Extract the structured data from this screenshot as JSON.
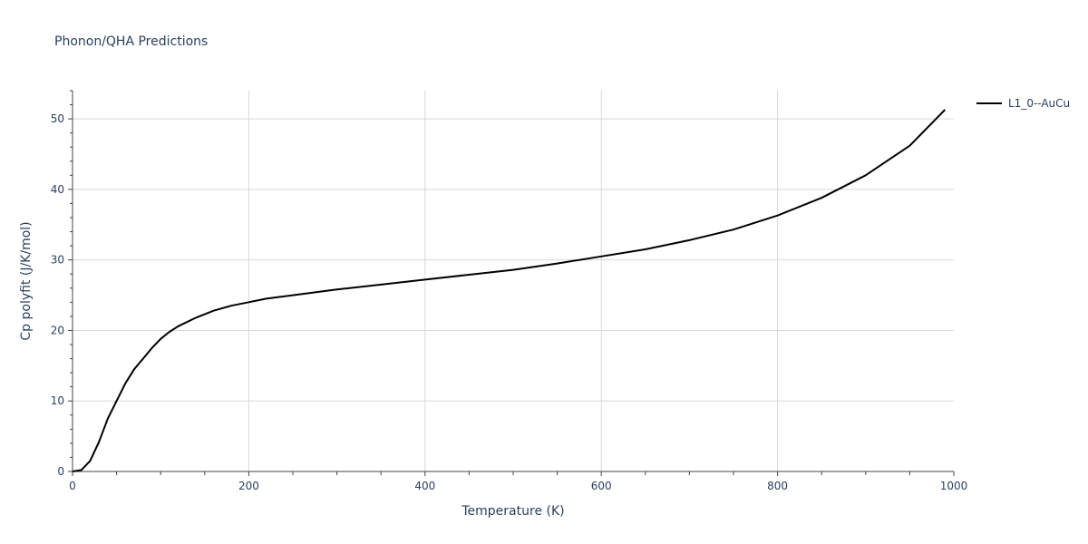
{
  "chart_data": {
    "type": "line",
    "title": "Phonon/QHA Predictions",
    "xlabel": "Temperature (K)",
    "ylabel": "Cp polyfit (J/K/mol)",
    "xlim": [
      0,
      1000
    ],
    "ylim": [
      0,
      54
    ],
    "xticks": [
      0,
      200,
      400,
      600,
      800,
      1000
    ],
    "xtick_labels": [
      "0",
      "200",
      "400",
      "600",
      "800",
      "1000"
    ],
    "yticks": [
      0,
      10,
      20,
      30,
      40,
      50
    ],
    "ytick_labels": [
      "0",
      "10",
      "20",
      "30",
      "40",
      "50"
    ],
    "grid": true,
    "legend_position": "top-right",
    "series": [
      {
        "name": "L1_0--AuCu",
        "color": "#000000",
        "x": [
          0,
          10,
          20,
          30,
          40,
          50,
          60,
          70,
          80,
          90,
          100,
          110,
          120,
          140,
          160,
          180,
          200,
          220,
          250,
          300,
          350,
          400,
          450,
          500,
          550,
          600,
          650,
          700,
          750,
          800,
          850,
          900,
          950,
          990
        ],
        "y": [
          0,
          0.2,
          1.5,
          4.2,
          7.5,
          10.0,
          12.5,
          14.5,
          16.0,
          17.5,
          18.8,
          19.8,
          20.6,
          21.8,
          22.8,
          23.5,
          24.0,
          24.5,
          25.0,
          25.8,
          26.5,
          27.2,
          27.9,
          28.6,
          29.5,
          30.5,
          31.5,
          32.8,
          34.3,
          36.3,
          38.8,
          42.0,
          46.2,
          51.3
        ]
      }
    ]
  }
}
